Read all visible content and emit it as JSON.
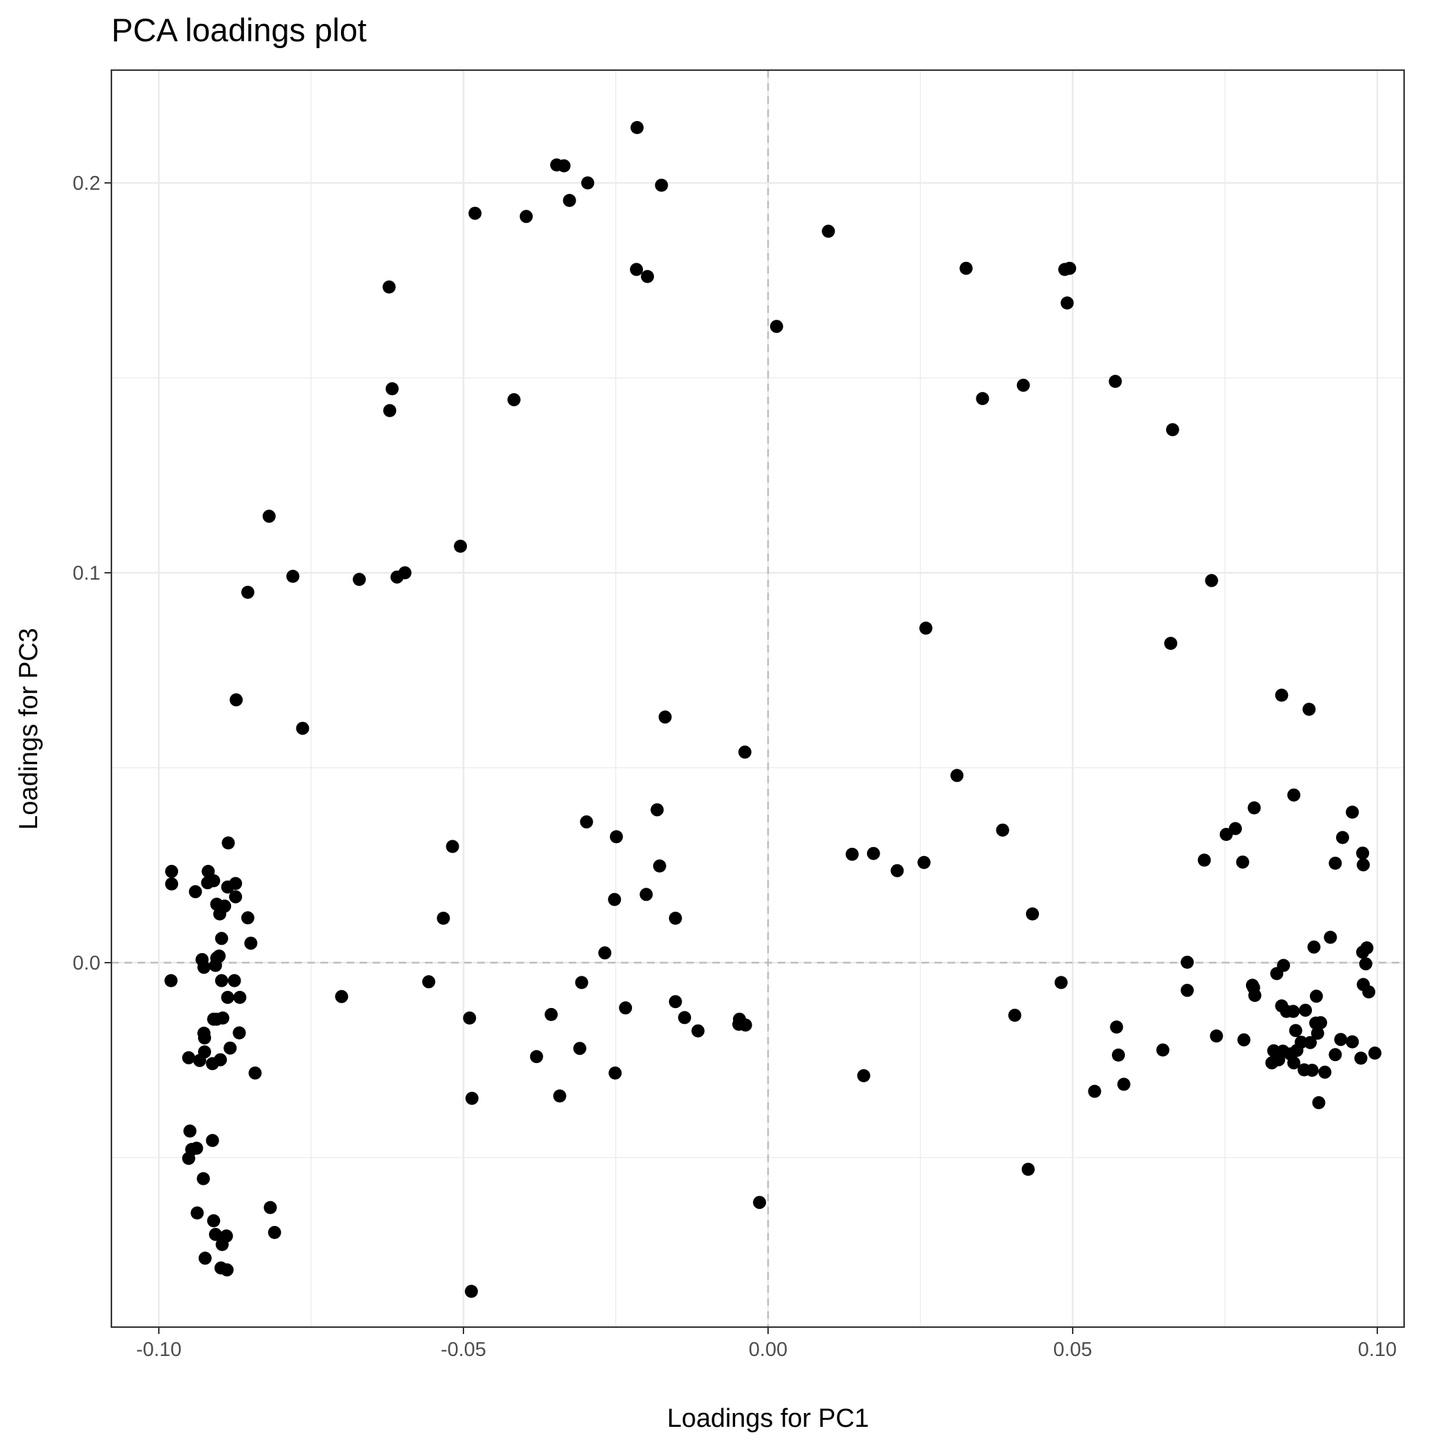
{
  "chart_data": {
    "type": "scatter",
    "title": "PCA loadings plot",
    "xlabel": "Loadings for PC1",
    "ylabel": "Loadings for PC3",
    "xlim": [
      -0.108,
      0.1
    ],
    "ylim": [
      -0.1,
      0.22
    ],
    "x_ticks": [
      -0.1,
      -0.05,
      0.0,
      0.05,
      0.1
    ],
    "x_tick_labels": [
      "-0.10",
      "-0.05",
      "0.00",
      "0.05",
      "0.10"
    ],
    "y_ticks": [
      0.0,
      0.1,
      0.2
    ],
    "y_tick_labels": [
      "0.0",
      "0.1",
      "0.2"
    ],
    "grid": true,
    "reference_lines": {
      "x": 0,
      "y": 0
    },
    "point_color": "#000000",
    "points": [
      {
        "x": -0.0215,
        "y": 0.2142
      },
      {
        "x": -0.0347,
        "y": 0.2046
      },
      {
        "x": -0.0335,
        "y": 0.2044
      },
      {
        "x": -0.0296,
        "y": 0.2
      },
      {
        "x": -0.0175,
        "y": 0.1994
      },
      {
        "x": -0.0326,
        "y": 0.1955
      },
      {
        "x": -0.0481,
        "y": 0.1922
      },
      {
        "x": -0.0397,
        "y": 0.1914
      },
      {
        "x": 0.0099,
        "y": 0.1876
      },
      {
        "x": -0.0216,
        "y": 0.1778
      },
      {
        "x": -0.0198,
        "y": 0.176
      },
      {
        "x": 0.0325,
        "y": 0.1781
      },
      {
        "x": 0.0487,
        "y": 0.1778
      },
      {
        "x": 0.0495,
        "y": 0.1781
      },
      {
        "x": 0.0491,
        "y": 0.1692
      },
      {
        "x": -0.0622,
        "y": 0.1733
      },
      {
        "x": 0.0014,
        "y": 0.1632
      },
      {
        "x": -0.0617,
        "y": 0.1472
      },
      {
        "x": -0.0621,
        "y": 0.1416
      },
      {
        "x": -0.0417,
        "y": 0.1444
      },
      {
        "x": 0.0352,
        "y": 0.1447
      },
      {
        "x": 0.0419,
        "y": 0.1481
      },
      {
        "x": 0.057,
        "y": 0.1491
      },
      {
        "x": 0.0664,
        "y": 0.1367
      },
      {
        "x": -0.0819,
        "y": 0.1145
      },
      {
        "x": -0.0505,
        "y": 0.1068
      },
      {
        "x": -0.078,
        "y": 0.0991
      },
      {
        "x": -0.0671,
        "y": 0.0983
      },
      {
        "x": -0.0609,
        "y": 0.0989
      },
      {
        "x": -0.0596,
        "y": 0.1
      },
      {
        "x": -0.0854,
        "y": 0.095
      },
      {
        "x": 0.0728,
        "y": 0.098
      },
      {
        "x": 0.0259,
        "y": 0.0858
      },
      {
        "x": 0.0661,
        "y": 0.0819
      },
      {
        "x": -0.0873,
        "y": 0.0674
      },
      {
        "x": -0.0764,
        "y": 0.0601
      },
      {
        "x": -0.0169,
        "y": 0.063
      },
      {
        "x": 0.0843,
        "y": 0.0686
      },
      {
        "x": 0.0888,
        "y": 0.065
      },
      {
        "x": -0.0038,
        "y": 0.054
      },
      {
        "x": 0.031,
        "y": 0.048
      },
      {
        "x": 0.0863,
        "y": 0.043
      },
      {
        "x": 0.0798,
        "y": 0.0397
      },
      {
        "x": 0.0959,
        "y": 0.0386
      },
      {
        "x": -0.0182,
        "y": 0.0392
      },
      {
        "x": -0.0298,
        "y": 0.0361
      },
      {
        "x": 0.0385,
        "y": 0.034
      },
      {
        "x": 0.0767,
        "y": 0.0344
      },
      {
        "x": 0.0752,
        "y": 0.0329
      },
      {
        "x": -0.0249,
        "y": 0.0323
      },
      {
        "x": 0.0943,
        "y": 0.0321
      },
      {
        "x": -0.0886,
        "y": 0.0307
      },
      {
        "x": -0.0518,
        "y": 0.0298
      },
      {
        "x": 0.0138,
        "y": 0.0278
      },
      {
        "x": 0.0173,
        "y": 0.028
      },
      {
        "x": 0.0976,
        "y": 0.0281
      },
      {
        "x": 0.0716,
        "y": 0.0263
      },
      {
        "x": 0.0779,
        "y": 0.0258
      },
      {
        "x": 0.0931,
        "y": 0.0255
      },
      {
        "x": 0.0256,
        "y": 0.0257
      },
      {
        "x": 0.0977,
        "y": 0.0251
      },
      {
        "x": -0.0178,
        "y": 0.0248
      },
      {
        "x": 0.0212,
        "y": 0.0236
      },
      {
        "x": -0.0979,
        "y": 0.0234
      },
      {
        "x": -0.0919,
        "y": 0.0234
      },
      {
        "x": -0.0979,
        "y": 0.0202
      },
      {
        "x": -0.091,
        "y": 0.021
      },
      {
        "x": -0.092,
        "y": 0.0205
      },
      {
        "x": -0.0874,
        "y": 0.0203
      },
      {
        "x": -0.0887,
        "y": 0.0194
      },
      {
        "x": -0.094,
        "y": 0.0182
      },
      {
        "x": -0.0874,
        "y": 0.0169
      },
      {
        "x": -0.0252,
        "y": 0.0162
      },
      {
        "x": -0.02,
        "y": 0.0175
      },
      {
        "x": -0.0905,
        "y": 0.015
      },
      {
        "x": -0.0892,
        "y": 0.0145
      },
      {
        "x": -0.09,
        "y": 0.0125
      },
      {
        "x": 0.0434,
        "y": 0.0125
      },
      {
        "x": -0.0854,
        "y": 0.0115
      },
      {
        "x": -0.0533,
        "y": 0.0114
      },
      {
        "x": -0.0152,
        "y": 0.0114
      },
      {
        "x": -0.0897,
        "y": 0.0062
      },
      {
        "x": -0.0849,
        "y": 0.005
      },
      {
        "x": 0.0923,
        "y": 0.0065
      },
      {
        "x": 0.0896,
        "y": 0.004
      },
      {
        "x": 0.0983,
        "y": 0.0038
      },
      {
        "x": 0.0976,
        "y": 0.0027
      },
      {
        "x": -0.0268,
        "y": 0.0025
      },
      {
        "x": -0.0901,
        "y": 0.0017
      },
      {
        "x": -0.0905,
        "y": 0.0012
      },
      {
        "x": -0.0929,
        "y": 0.0008
      },
      {
        "x": 0.0688,
        "y": 0.0001
      },
      {
        "x": 0.0981,
        "y": -0.0003
      },
      {
        "x": -0.0907,
        "y": -0.0007
      },
      {
        "x": -0.0926,
        "y": -0.0012
      },
      {
        "x": 0.0846,
        "y": -0.0007
      },
      {
        "x": 0.0835,
        "y": -0.0028
      },
      {
        "x": -0.098,
        "y": -0.0046
      },
      {
        "x": -0.0897,
        "y": -0.0046
      },
      {
        "x": -0.0876,
        "y": -0.0046
      },
      {
        "x": -0.0557,
        "y": -0.0049
      },
      {
        "x": -0.0306,
        "y": -0.0051
      },
      {
        "x": 0.0481,
        "y": -0.0051
      },
      {
        "x": 0.0977,
        "y": -0.0056
      },
      {
        "x": 0.0795,
        "y": -0.0058
      },
      {
        "x": 0.0688,
        "y": -0.0071
      },
      {
        "x": 0.0797,
        "y": -0.0064
      },
      {
        "x": 0.0799,
        "y": -0.0084
      },
      {
        "x": 0.0986,
        "y": -0.0075
      },
      {
        "x": -0.07,
        "y": -0.0087
      },
      {
        "x": -0.0887,
        "y": -0.0089
      },
      {
        "x": -0.0867,
        "y": -0.0089
      },
      {
        "x": 0.09,
        "y": -0.0086
      },
      {
        "x": -0.0152,
        "y": -0.01
      },
      {
        "x": 0.0843,
        "y": -0.0111
      },
      {
        "x": 0.0851,
        "y": -0.0125
      },
      {
        "x": 0.0862,
        "y": -0.0125
      },
      {
        "x": 0.0882,
        "y": -0.0122
      },
      {
        "x": -0.091,
        "y": -0.0145
      },
      {
        "x": -0.0905,
        "y": -0.0145
      },
      {
        "x": -0.0895,
        "y": -0.0142
      },
      {
        "x": -0.0356,
        "y": -0.0133
      },
      {
        "x": -0.0137,
        "y": -0.0141
      },
      {
        "x": -0.0047,
        "y": -0.0145
      },
      {
        "x": -0.049,
        "y": -0.0142
      },
      {
        "x": 0.0405,
        "y": -0.0135
      },
      {
        "x": -0.0868,
        "y": -0.018
      },
      {
        "x": -0.0926,
        "y": -0.0181
      },
      {
        "x": -0.0925,
        "y": -0.0193
      },
      {
        "x": -0.0115,
        "y": -0.0175
      },
      {
        "x": -0.0037,
        "y": -0.016
      },
      {
        "x": -0.0048,
        "y": -0.0158
      },
      {
        "x": -0.0234,
        "y": -0.0116
      },
      {
        "x": 0.0572,
        "y": -0.0165
      },
      {
        "x": 0.0899,
        "y": -0.0155
      },
      {
        "x": 0.0907,
        "y": -0.0154
      },
      {
        "x": 0.0866,
        "y": -0.0174
      },
      {
        "x": 0.0902,
        "y": -0.0181
      },
      {
        "x": 0.0959,
        "y": -0.0203
      },
      {
        "x": 0.094,
        "y": -0.0197
      },
      {
        "x": 0.089,
        "y": -0.0205
      },
      {
        "x": 0.0736,
        "y": -0.0188
      },
      {
        "x": 0.0781,
        "y": -0.0198
      },
      {
        "x": 0.0875,
        "y": -0.0204
      },
      {
        "x": -0.0309,
        "y": -0.022
      },
      {
        "x": -0.0925,
        "y": -0.0229
      },
      {
        "x": -0.0883,
        "y": -0.0219
      },
      {
        "x": -0.0951,
        "y": -0.0244
      },
      {
        "x": -0.038,
        "y": -0.0241
      },
      {
        "x": 0.0648,
        "y": -0.0224
      },
      {
        "x": 0.0575,
        "y": -0.0237
      },
      {
        "x": 0.083,
        "y": -0.0226
      },
      {
        "x": 0.0845,
        "y": -0.0227
      },
      {
        "x": 0.0868,
        "y": -0.0225
      },
      {
        "x": 0.0996,
        "y": -0.0232
      },
      {
        "x": 0.0838,
        "y": -0.0249
      },
      {
        "x": 0.0857,
        "y": -0.0234
      },
      {
        "x": 0.0931,
        "y": -0.0236
      },
      {
        "x": 0.0973,
        "y": -0.0245
      },
      {
        "x": -0.0933,
        "y": -0.0251
      },
      {
        "x": -0.0912,
        "y": -0.0259
      },
      {
        "x": -0.0899,
        "y": -0.0249
      },
      {
        "x": 0.0827,
        "y": -0.0257
      },
      {
        "x": 0.0863,
        "y": -0.0257
      },
      {
        "x": 0.088,
        "y": -0.0275
      },
      {
        "x": 0.0893,
        "y": -0.0276
      },
      {
        "x": 0.0914,
        "y": -0.0281
      },
      {
        "x": -0.0251,
        "y": -0.0283
      },
      {
        "x": 0.0157,
        "y": -0.029
      },
      {
        "x": -0.0842,
        "y": -0.0283
      },
      {
        "x": 0.0584,
        "y": -0.0312
      },
      {
        "x": 0.0536,
        "y": -0.033
      },
      {
        "x": -0.0342,
        "y": -0.0342
      },
      {
        "x": -0.0486,
        "y": -0.0348
      },
      {
        "x": 0.0904,
        "y": -0.0359
      },
      {
        "x": -0.0949,
        "y": -0.0432
      },
      {
        "x": -0.0912,
        "y": -0.0456
      },
      {
        "x": -0.0938,
        "y": -0.0476
      },
      {
        "x": -0.0946,
        "y": -0.0479
      },
      {
        "x": -0.0951,
        "y": -0.0502
      },
      {
        "x": -0.0927,
        "y": -0.0554
      },
      {
        "x": 0.0427,
        "y": -0.053
      },
      {
        "x": -0.0817,
        "y": -0.0628
      },
      {
        "x": -0.0937,
        "y": -0.0642
      },
      {
        "x": -0.091,
        "y": -0.0662
      },
      {
        "x": -0.0014,
        "y": -0.0615
      },
      {
        "x": -0.081,
        "y": -0.0692
      },
      {
        "x": -0.0907,
        "y": -0.0697
      },
      {
        "x": -0.0889,
        "y": -0.0701
      },
      {
        "x": -0.0896,
        "y": -0.0723
      },
      {
        "x": -0.0924,
        "y": -0.0758
      },
      {
        "x": -0.0898,
        "y": -0.0783
      },
      {
        "x": -0.0888,
        "y": -0.0788
      },
      {
        "x": -0.0487,
        "y": -0.0843
      }
    ]
  }
}
